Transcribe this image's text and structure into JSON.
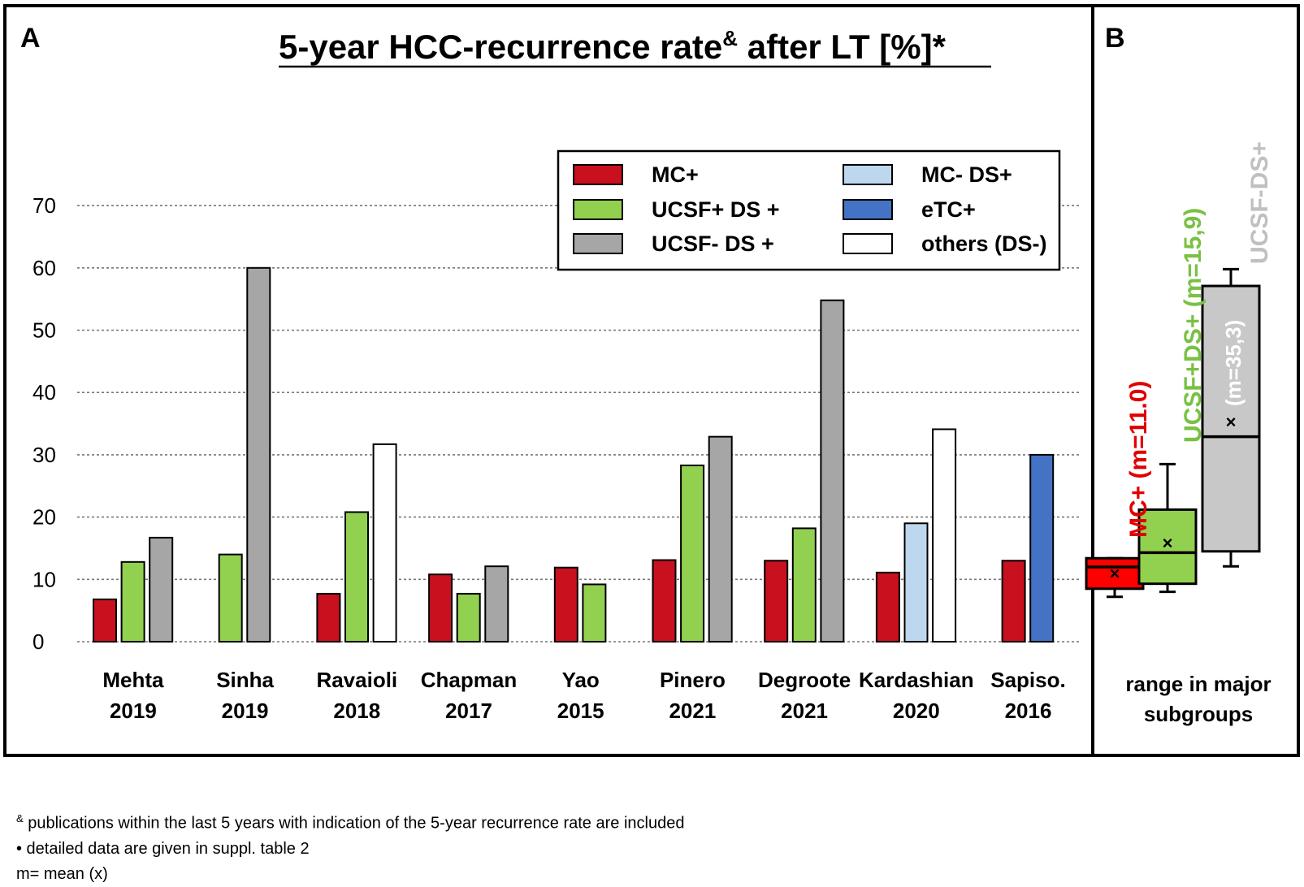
{
  "panels": {
    "a_label": "A",
    "b_label": "B"
  },
  "chart_data": [
    {
      "type": "bar",
      "title_main": "5-year HCC-recurrence rate",
      "title_sup": "&",
      "title_tail": " after LT [%]*",
      "xlabel": "",
      "ylabel": "",
      "ylim": [
        0,
        70
      ],
      "yticks": [
        0,
        10,
        20,
        30,
        40,
        50,
        60,
        70
      ],
      "grid": true,
      "legend_position": "top-right",
      "colors": {
        "MC+": "#c8101e",
        "UCSF+ DS +": "#92d050",
        "UCSF- DS +": "#a6a6a6",
        "MC- DS+": "#bdd7ee",
        "eTC+": "#4472c4",
        "others (DS-)": "#ffffff"
      },
      "legend": [
        {
          "key": "MC+",
          "label": "MC+"
        },
        {
          "key": "UCSF+ DS +",
          "label": "UCSF+ DS +"
        },
        {
          "key": "UCSF- DS +",
          "label": "UCSF- DS +"
        },
        {
          "key": "MC- DS+",
          "label": "MC- DS+"
        },
        {
          "key": "eTC+",
          "label": "eTC+"
        },
        {
          "key": "others (DS-)",
          "label": "others  (DS-)"
        }
      ],
      "groups": [
        {
          "name": "Mehta",
          "year": "2019",
          "bars": [
            {
              "series": "MC+",
              "value": 6.8
            },
            {
              "series": "UCSF+ DS +",
              "value": 12.8
            },
            {
              "series": "UCSF- DS +",
              "value": 16.7
            }
          ]
        },
        {
          "name": "Sinha",
          "year": "2019",
          "bars": [
            {
              "series": "UCSF+ DS +",
              "value": 14.0
            },
            {
              "series": "UCSF- DS +",
              "value": 60.0
            }
          ]
        },
        {
          "name": "Ravaioli",
          "year": "2018",
          "bars": [
            {
              "series": "MC+",
              "value": 7.7
            },
            {
              "series": "UCSF+ DS +",
              "value": 20.8
            },
            {
              "series": "others (DS-)",
              "value": 31.7
            }
          ]
        },
        {
          "name": "Chapman",
          "year": "2017",
          "bars": [
            {
              "series": "MC+",
              "value": 10.8
            },
            {
              "series": "UCSF+ DS +",
              "value": 7.7
            },
            {
              "series": "UCSF- DS +",
              "value": 12.1
            }
          ]
        },
        {
          "name": "Yao",
          "year": "2015",
          "bars": [
            {
              "series": "MC+",
              "value": 11.9
            },
            {
              "series": "UCSF+ DS +",
              "value": 9.2
            }
          ]
        },
        {
          "name": "Pinero",
          "year": "2021",
          "bars": [
            {
              "series": "MC+",
              "value": 13.1
            },
            {
              "series": "UCSF+ DS +",
              "value": 28.3
            },
            {
              "series": "UCSF- DS +",
              "value": 32.9
            }
          ]
        },
        {
          "name": "Degroote",
          "year": "2021",
          "bars": [
            {
              "series": "MC+",
              "value": 13.0
            },
            {
              "series": "UCSF+ DS +",
              "value": 18.2
            },
            {
              "series": "UCSF- DS +",
              "value": 54.8
            }
          ]
        },
        {
          "name": "Kardashian",
          "year": "2020",
          "bars": [
            {
              "series": "MC+",
              "value": 11.1
            },
            {
              "series": "MC- DS+",
              "value": 19.0
            },
            {
              "series": "others (DS-)",
              "value": 34.1
            }
          ]
        },
        {
          "name": "Sapiso.",
          "year": "2016",
          "bars": [
            {
              "series": "MC+",
              "value": 13.0
            },
            {
              "series": "eTC+",
              "value": 30.0
            }
          ]
        }
      ]
    },
    {
      "type": "box",
      "title": "",
      "ylim": [
        0,
        70
      ],
      "xlabel": "range in major subgroups",
      "boxes": [
        {
          "label": "MC+",
          "mean_label": "(m=11.0)",
          "color": "#ff0000",
          "label_color": "#e00000",
          "min": 7.2,
          "q1": 8.5,
          "median": 12.0,
          "q3": 13.4,
          "max": 13.4,
          "mean": 11.0
        },
        {
          "label": "UCSF+DS+",
          "mean_label": "(m=15,9)",
          "color": "#92d050",
          "label_color": "#7ac143",
          "min": 8.0,
          "q1": 9.3,
          "median": 14.3,
          "q3": 21.2,
          "max": 28.5,
          "mean": 15.9
        },
        {
          "label": "UCSF-DS+",
          "mean_label": "(m=35,3)",
          "color": "#c8c8c8",
          "label_color": "#c0c0c0",
          "min": 12.1,
          "q1": 14.5,
          "median": 32.9,
          "q3": 57.1,
          "max": 59.8,
          "mean": 35.3
        }
      ]
    }
  ],
  "footnotes": {
    "line1_sup": "&",
    "line1": " publications within the last 5 years with indication of the 5-year recurrence  rate are included",
    "line2": "•   detailed data are given in suppl. table 2",
    "line3": "m=  mean (x)"
  }
}
